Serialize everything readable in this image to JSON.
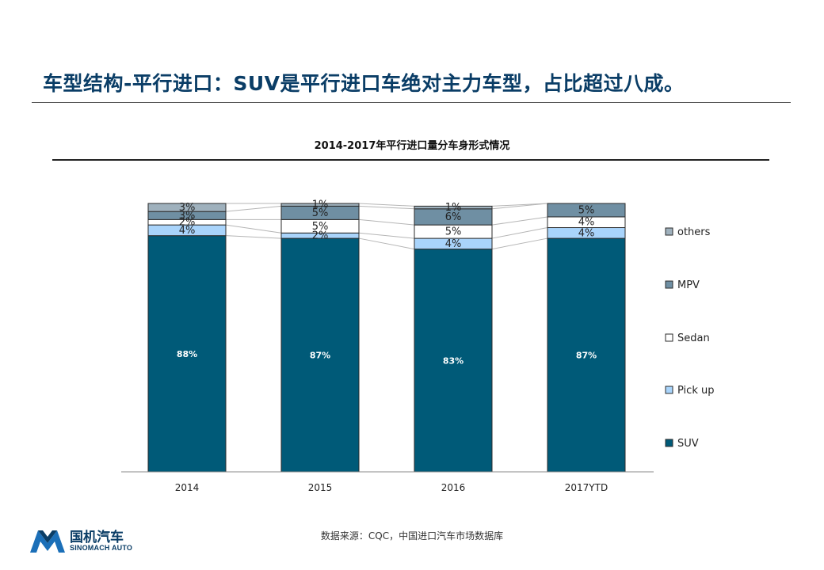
{
  "page": {
    "title": "车型结构-平行进口：SUV是平行进口车绝对主力车型，占比超过八成。",
    "source": "数据来源：CQC，中国进口汽车市场数据库"
  },
  "logo": {
    "name_cn": "国机汽车",
    "name_en": "SINOMACH AUTO"
  },
  "chart_data": {
    "type": "bar",
    "stacked": true,
    "title": "2014-2017年平行进口量分车身形式情况",
    "categories": [
      "2014",
      "2015",
      "2016",
      "2017YTD"
    ],
    "ylim": [
      0,
      100
    ],
    "grid": false,
    "legend_position": "right",
    "series": [
      {
        "name": "SUV",
        "color": "#005a78",
        "values": [
          88,
          87,
          83,
          87
        ],
        "labels": [
          "88%",
          "87%",
          "83%",
          "87%"
        ]
      },
      {
        "name": "Pick up",
        "color": "#a9d4fb",
        "values": [
          4,
          2,
          4,
          4
        ],
        "labels": [
          "4%",
          "2%",
          "4%",
          "4%"
        ]
      },
      {
        "name": "Sedan",
        "color": "#ffffff",
        "values": [
          2,
          5,
          5,
          4
        ],
        "labels": [
          "2%",
          "5%",
          "5%",
          "4%"
        ]
      },
      {
        "name": "MPV",
        "color": "#6f8fa3",
        "values": [
          3,
          5,
          6,
          5
        ],
        "labels": [
          "3%",
          "5%",
          "6%",
          "5%"
        ]
      },
      {
        "name": "others",
        "color": "#9fb1bd",
        "values": [
          3,
          1,
          1,
          0
        ],
        "labels": [
          "3%",
          "1%",
          "1%",
          ""
        ]
      }
    ],
    "legend_order": [
      "others",
      "MPV",
      "Sedan",
      "Pick up",
      "SUV"
    ]
  }
}
